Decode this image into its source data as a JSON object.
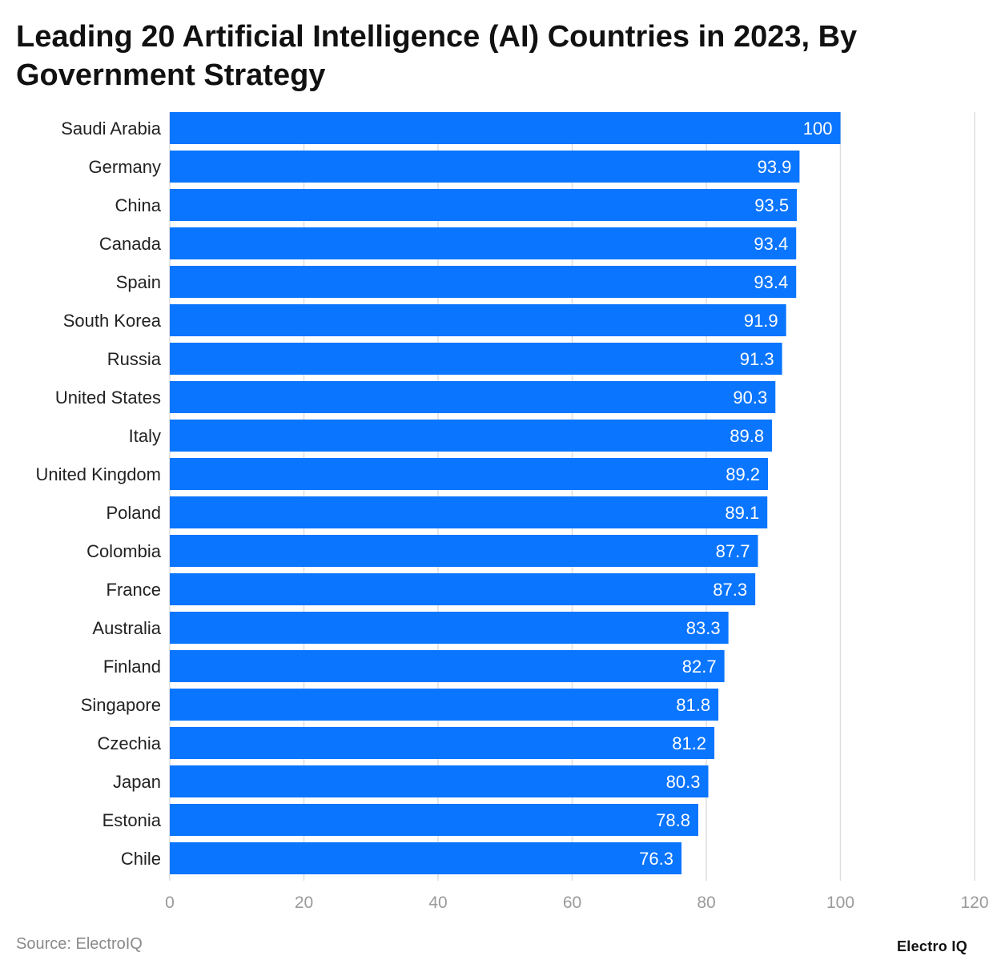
{
  "title": "Leading 20 Artificial Intelligence (AI) Countries in 2023, By Government Strategy",
  "source": "Source: ElectroIQ",
  "brand": "Electro IQ",
  "colors": {
    "bar": "#0a75ff",
    "bar_label": "#ffffff",
    "grid": "#dedede",
    "tick": "#9a9a9a",
    "category": "#222222"
  },
  "chart_data": {
    "type": "bar",
    "orientation": "horizontal",
    "categories": [
      "Saudi Arabia",
      "Germany",
      "China",
      "Canada",
      "Spain",
      "South Korea",
      "Russia",
      "United States",
      "Italy",
      "United Kingdom",
      "Poland",
      "Colombia",
      "France",
      "Australia",
      "Finland",
      "Singapore",
      "Czechia",
      "Japan",
      "Estonia",
      "Chile"
    ],
    "values": [
      100,
      93.9,
      93.5,
      93.4,
      93.4,
      91.9,
      91.3,
      90.3,
      89.8,
      89.2,
      89.1,
      87.7,
      87.3,
      83.3,
      82.7,
      81.8,
      81.2,
      80.3,
      78.8,
      76.3
    ],
    "value_labels": [
      "100",
      "93.9",
      "93.5",
      "93.4",
      "93.4",
      "91.9",
      "91.3",
      "90.3",
      "89.8",
      "89.2",
      "89.1",
      "87.7",
      "87.3",
      "83.3",
      "82.7",
      "81.8",
      "81.2",
      "80.3",
      "78.8",
      "76.3"
    ],
    "x_ticks": [
      0,
      20,
      40,
      60,
      80,
      100,
      120
    ],
    "xlim": [
      0,
      120
    ],
    "grid": true,
    "xlabel": "",
    "ylabel": ""
  }
}
